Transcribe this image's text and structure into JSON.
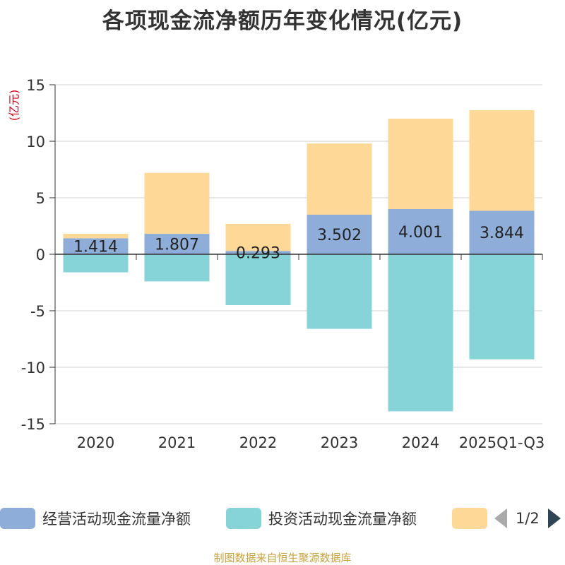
{
  "chart_data": {
    "type": "bar",
    "stacked": true,
    "title": "各项现金流净额历年变化情况(亿元)",
    "ylabel": "(亿元)",
    "categories": [
      "2020",
      "2021",
      "2022",
      "2023",
      "2024",
      "2025Q1-Q3"
    ],
    "ylim": [
      -15,
      15
    ],
    "yticks": [
      15,
      10,
      5,
      0,
      -5,
      -10,
      -15
    ],
    "series": [
      {
        "name": "经营活动现金流量净额",
        "color": "#8eaed9",
        "values": [
          1.414,
          1.807,
          0.293,
          3.502,
          4.001,
          3.844
        ],
        "labels": [
          "1.414",
          "1.807",
          "0.293",
          "3.502",
          "4.001",
          "3.844"
        ]
      },
      {
        "name": "投资活动现金流量净额",
        "color": "#86d4d8",
        "values": [
          -1.6,
          -2.4,
          -4.5,
          -6.6,
          -13.9,
          -9.3
        ]
      },
      {
        "name": "",
        "color": "#fed897",
        "values": [
          0.4,
          5.4,
          2.4,
          6.3,
          8.0,
          8.9
        ]
      }
    ],
    "legend_position": "bottom"
  },
  "legend": {
    "item1": "经营活动现金流量净额",
    "item2": "投资活动现金流量净额",
    "page": "1/2"
  },
  "source": "制图数据来自恒生聚源数据库"
}
